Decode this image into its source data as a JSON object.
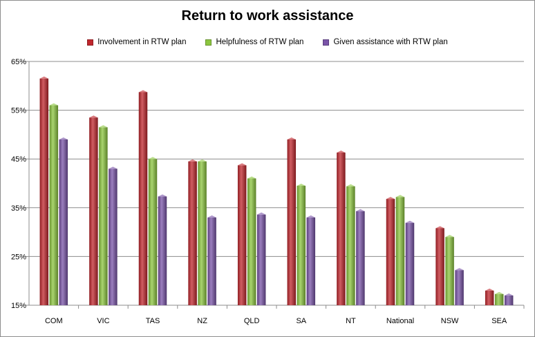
{
  "chart_data": {
    "type": "bar",
    "title": "Return to work assistance",
    "categories": [
      "COM",
      "VIC",
      "TAS",
      "NZ",
      "QLD",
      "SA",
      "NT",
      "National",
      "NSW",
      "SEA"
    ],
    "series": [
      {
        "name": "Involvement in RTW plan",
        "color": "#c0272d",
        "values": [
          61.5,
          53.5,
          58.7,
          44.5,
          43.7,
          49.0,
          46.3,
          36.8,
          30.8,
          18.0
        ]
      },
      {
        "name": "Helpfulness of RTW plan",
        "color": "#8cc63f",
        "values": [
          56.0,
          51.5,
          45.0,
          44.5,
          41.0,
          39.5,
          39.4,
          37.2,
          29.0,
          17.3
        ]
      },
      {
        "name": "Given assistance with RTW plan",
        "color": "#7a54a8",
        "values": [
          49.0,
          43.0,
          37.3,
          33.0,
          33.6,
          33.0,
          34.3,
          31.9,
          22.2,
          17.0
        ]
      }
    ],
    "yticks": [
      "15%",
      "25%",
      "35%",
      "45%",
      "55%",
      "65%"
    ],
    "ylim": [
      15,
      65
    ],
    "xlabel": "",
    "ylabel": "",
    "grid": true,
    "legend_position": "top"
  }
}
